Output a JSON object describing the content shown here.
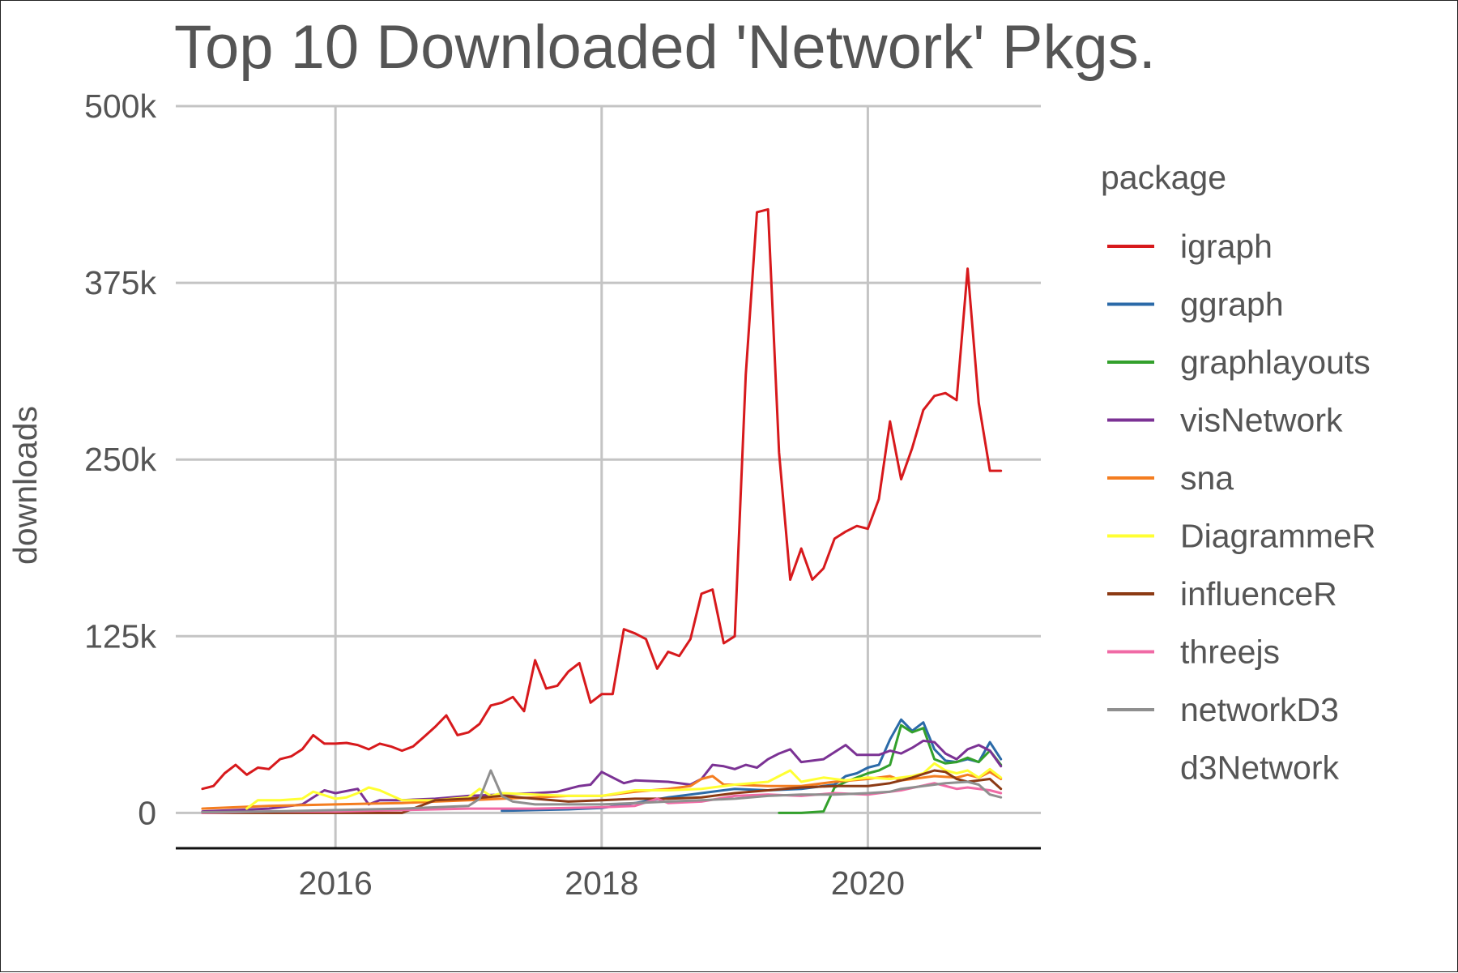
{
  "chart_data": {
    "type": "line",
    "title": "Top 10 Downloaded 'Network' Pkgs.",
    "xlabel": "",
    "ylabel": "downloads",
    "xlim": [
      2014.8,
      2021.3
    ],
    "ylim": [
      -25000,
      500000
    ],
    "x_ticks": [
      2016,
      2018,
      2020
    ],
    "x_tick_labels": [
      "2016",
      "2018",
      "2020"
    ],
    "y_ticks": [
      0,
      125000,
      250000,
      375000,
      500000
    ],
    "y_tick_labels": [
      "0",
      "125k",
      "250k",
      "375k",
      "500k"
    ],
    "grid": true,
    "legend_title": "package",
    "legend_position": "right",
    "series": [
      {
        "name": "igraph",
        "color": "#d7191c",
        "x": [
          2015.0,
          2015.083,
          2015.167,
          2015.25,
          2015.333,
          2015.417,
          2015.5,
          2015.583,
          2015.667,
          2015.75,
          2015.833,
          2015.917,
          2016.0,
          2016.083,
          2016.167,
          2016.25,
          2016.333,
          2016.417,
          2016.5,
          2016.583,
          2016.667,
          2016.75,
          2016.833,
          2016.917,
          2017.0,
          2017.083,
          2017.167,
          2017.25,
          2017.333,
          2017.417,
          2017.5,
          2017.583,
          2017.667,
          2017.75,
          2017.833,
          2017.917,
          2018.0,
          2018.083,
          2018.167,
          2018.25,
          2018.333,
          2018.417,
          2018.5,
          2018.583,
          2018.667,
          2018.75,
          2018.833,
          2018.917,
          2019.0,
          2019.083,
          2019.167,
          2019.25,
          2019.333,
          2019.417,
          2019.5,
          2019.583,
          2019.667,
          2019.75,
          2019.833,
          2019.917,
          2020.0,
          2020.083,
          2020.167,
          2020.25,
          2020.333,
          2020.417,
          2020.5,
          2020.583,
          2020.667,
          2020.75,
          2020.833,
          2020.917,
          2021.0
        ],
        "y": [
          17000,
          19000,
          28000,
          34000,
          27000,
          32000,
          31000,
          38000,
          40000,
          45000,
          55000,
          49000,
          49000,
          49500,
          48000,
          45000,
          49000,
          47000,
          44000,
          47000,
          54000,
          61000,
          69000,
          55000,
          57000,
          63000,
          76000,
          78000,
          82000,
          72000,
          108000,
          88000,
          90000,
          100000,
          106000,
          78000,
          84000,
          84000,
          130000,
          127000,
          123000,
          102000,
          114000,
          111000,
          123000,
          155000,
          158000,
          120000,
          125000,
          310000,
          425000,
          427000,
          255000,
          165000,
          187000,
          165000,
          173000,
          194000,
          199000,
          203000,
          201000,
          222000,
          277000,
          236000,
          258000,
          285000,
          295000,
          297000,
          292000,
          385000,
          290000,
          242000,
          242000
        ]
      },
      {
        "name": "ggraph",
        "color": "#2b6aa8",
        "x": [
          2017.25,
          2017.5,
          2017.75,
          2018.0,
          2018.25,
          2018.5,
          2018.75,
          2019.0,
          2019.25,
          2019.5,
          2019.75,
          2019.833,
          2019.917,
          2020.0,
          2020.083,
          2020.167,
          2020.25,
          2020.333,
          2020.417,
          2020.5,
          2020.583,
          2020.667,
          2020.75,
          2020.833,
          2020.917,
          2021.0
        ],
        "y": [
          1500,
          2000,
          2500,
          3500,
          7000,
          11000,
          14000,
          17000,
          16000,
          17000,
          20000,
          26000,
          28000,
          32000,
          34000,
          52000,
          66000,
          58000,
          64000,
          45000,
          37000,
          36000,
          38000,
          36000,
          50000,
          38000
        ]
      },
      {
        "name": "graphlayouts",
        "color": "#33a02c",
        "x": [
          2019.333,
          2019.417,
          2019.5,
          2019.583,
          2019.667,
          2019.75,
          2019.833,
          2019.917,
          2020.0,
          2020.083,
          2020.167,
          2020.25,
          2020.333,
          2020.417,
          2020.5,
          2020.583,
          2020.667,
          2020.75,
          2020.833,
          2020.917,
          2021.0
        ],
        "y": [
          0,
          0,
          0,
          500,
          1000,
          18000,
          22000,
          25000,
          28000,
          30000,
          34000,
          62000,
          57000,
          60000,
          38000,
          35000,
          36000,
          39000,
          36000,
          44000,
          34000
        ]
      },
      {
        "name": "visNetwork",
        "color": "#7b3294",
        "x": [
          2015.0,
          2015.25,
          2015.5,
          2015.75,
          2015.917,
          2016.0,
          2016.167,
          2016.25,
          2016.333,
          2016.5,
          2016.75,
          2017.0,
          2017.25,
          2017.5,
          2017.667,
          2017.833,
          2017.917,
          2018.0,
          2018.167,
          2018.25,
          2018.5,
          2018.667,
          2018.75,
          2018.833,
          2018.917,
          2019.0,
          2019.083,
          2019.167,
          2019.25,
          2019.333,
          2019.417,
          2019.5,
          2019.667,
          2019.833,
          2019.917,
          2020.0,
          2020.083,
          2020.167,
          2020.25,
          2020.333,
          2020.417,
          2020.5,
          2020.583,
          2020.667,
          2020.75,
          2020.833,
          2020.917,
          2021.0
        ],
        "y": [
          1000,
          2000,
          3000,
          6000,
          16000,
          14000,
          17000,
          6000,
          9000,
          9000,
          10000,
          12000,
          13000,
          14000,
          15000,
          19000,
          20000,
          29000,
          21000,
          23000,
          22000,
          20000,
          24000,
          34000,
          33000,
          31000,
          34000,
          32000,
          38000,
          42000,
          45000,
          36000,
          38000,
          48000,
          41000,
          41000,
          41000,
          44000,
          42000,
          46000,
          51000,
          50000,
          42000,
          38000,
          45000,
          48000,
          44000,
          33000
        ]
      },
      {
        "name": "sna",
        "color": "#f47d20",
        "x": [
          2015.0,
          2015.25,
          2015.5,
          2015.75,
          2016.0,
          2016.25,
          2016.5,
          2016.75,
          2017.0,
          2017.25,
          2017.5,
          2017.75,
          2018.0,
          2018.25,
          2018.5,
          2018.667,
          2018.75,
          2018.833,
          2018.917,
          2019.0,
          2019.25,
          2019.5,
          2019.75,
          2020.0,
          2020.167,
          2020.25,
          2020.5,
          2020.667,
          2020.75,
          2020.833,
          2020.917,
          2021.0
        ],
        "y": [
          3000,
          4000,
          5000,
          5500,
          6000,
          6500,
          7000,
          8000,
          9000,
          10000,
          11000,
          12000,
          12000,
          15000,
          17000,
          19000,
          24000,
          26000,
          20000,
          20000,
          19000,
          19000,
          22000,
          24000,
          26000,
          23000,
          26000,
          25000,
          27000,
          25000,
          29000,
          24000
        ]
      },
      {
        "name": "DiagrammeR",
        "color": "#ffff33",
        "x": [
          2015.333,
          2015.417,
          2015.583,
          2015.75,
          2015.833,
          2016.0,
          2016.083,
          2016.167,
          2016.25,
          2016.333,
          2016.5,
          2016.75,
          2017.0,
          2017.083,
          2017.167,
          2017.25,
          2017.5,
          2017.75,
          2018.0,
          2018.25,
          2018.5,
          2018.75,
          2018.917,
          2019.0,
          2019.25,
          2019.333,
          2019.417,
          2019.5,
          2019.667,
          2019.833,
          2020.0,
          2020.167,
          2020.333,
          2020.417,
          2020.5,
          2020.583,
          2020.667,
          2020.75,
          2020.833,
          2020.917,
          2021.0
        ],
        "y": [
          3000,
          9000,
          9000,
          10000,
          15000,
          10000,
          11000,
          14000,
          18000,
          16000,
          9000,
          9000,
          11000,
          17000,
          12000,
          14000,
          13000,
          12000,
          12000,
          16000,
          16000,
          17000,
          19000,
          20000,
          22000,
          26000,
          30000,
          22000,
          25000,
          23000,
          25000,
          24000,
          26000,
          28000,
          35000,
          30000,
          28000,
          30000,
          25000,
          31000,
          25000
        ]
      },
      {
        "name": "influenceR",
        "color": "#8c3a14",
        "x": [
          2015.0,
          2015.5,
          2016.0,
          2016.25,
          2016.5,
          2016.75,
          2017.0,
          2017.25,
          2017.5,
          2017.75,
          2018.0,
          2018.25,
          2018.5,
          2018.75,
          2019.0,
          2019.25,
          2019.5,
          2019.75,
          2020.0,
          2020.167,
          2020.25,
          2020.333,
          2020.5,
          2020.583,
          2020.667,
          2020.75,
          2020.833,
          2020.917,
          2021.0
        ],
        "y": [
          0,
          0,
          0,
          0,
          0,
          9000,
          10000,
          12000,
          10000,
          8000,
          9000,
          10000,
          10000,
          11000,
          14000,
          16000,
          18000,
          19000,
          19000,
          21000,
          23000,
          25000,
          30000,
          29000,
          24000,
          22000,
          23000,
          24000,
          17000
        ]
      },
      {
        "name": "threejs",
        "color": "#f06aa5",
        "x": [
          2015.0,
          2015.5,
          2016.0,
          2016.5,
          2017.0,
          2017.5,
          2018.0,
          2018.25,
          2018.417,
          2018.5,
          2018.75,
          2019.0,
          2019.25,
          2019.5,
          2019.75,
          2020.0,
          2020.25,
          2020.5,
          2020.667,
          2020.75,
          2020.917,
          2021.0
        ],
        "y": [
          0,
          1000,
          1000,
          2000,
          3000,
          3000,
          4000,
          5000,
          10000,
          7000,
          8000,
          12000,
          13000,
          12000,
          14000,
          13000,
          16000,
          21000,
          17000,
          18000,
          16000,
          14000
        ]
      },
      {
        "name": "networkD3",
        "color": "#8f8f8f",
        "x": [
          2015.0,
          2015.5,
          2016.0,
          2016.5,
          2017.0,
          2017.083,
          2017.167,
          2017.25,
          2017.333,
          2017.5,
          2017.75,
          2018.0,
          2018.25,
          2018.5,
          2018.75,
          2019.0,
          2019.25,
          2019.5,
          2019.75,
          2020.0,
          2020.167,
          2020.25,
          2020.5,
          2020.583,
          2020.75,
          2020.833,
          2020.917,
          2021.0
        ],
        "y": [
          500,
          1000,
          2000,
          3000,
          5000,
          10000,
          30000,
          12000,
          8000,
          6000,
          6000,
          6000,
          7000,
          8000,
          9000,
          10000,
          12000,
          13000,
          13000,
          14000,
          15000,
          17000,
          20000,
          21000,
          22000,
          20000,
          13000,
          11000
        ]
      },
      {
        "name": "d3Network",
        "color": "#ffffff",
        "x": [],
        "y": []
      }
    ]
  }
}
